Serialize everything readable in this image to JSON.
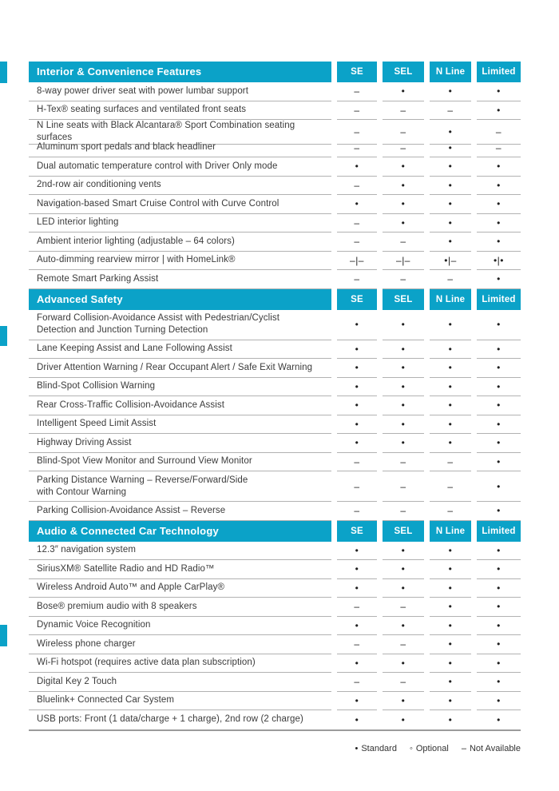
{
  "page": {
    "accent_color": "#0ba2c8",
    "divider_color": "#b2b2b2",
    "text_color": "#3b3b3b"
  },
  "columns": [
    "SE",
    "SEL",
    "N Line",
    "Limited"
  ],
  "sections": [
    {
      "title": "Interior & Convenience Features",
      "rows": [
        {
          "feature": "8-way power driver seat with power lumbar support",
          "values": [
            "–",
            "•",
            "•",
            "•"
          ]
        },
        {
          "feature": "H-Tex® seating surfaces and ventilated front seats",
          "values": [
            "–",
            "–",
            "–",
            "•"
          ]
        },
        {
          "feature": "N Line seats with Black Alcantara® Sport Combination seating surfaces",
          "values": [
            "–",
            "–",
            "•",
            "–"
          ]
        },
        {
          "feature": "Aluminum sport pedals and black headliner",
          "values": [
            "–",
            "–",
            "•",
            "–"
          ]
        },
        {
          "feature": "Dual automatic temperature control with Driver Only mode",
          "values": [
            "•",
            "•",
            "•",
            "•"
          ]
        },
        {
          "feature": "2nd-row air conditioning vents",
          "values": [
            "–",
            "•",
            "•",
            "•"
          ]
        },
        {
          "feature": "Navigation-based Smart Cruise Control with Curve Control",
          "values": [
            "•",
            "•",
            "•",
            "•"
          ]
        },
        {
          "feature": "LED interior lighting",
          "values": [
            "–",
            "•",
            "•",
            "•"
          ]
        },
        {
          "feature": "Ambient interior lighting (adjustable – 64 colors)",
          "values": [
            "–",
            "–",
            "•",
            "•"
          ]
        },
        {
          "feature": "Auto-dimming rearview mirror | with HomeLink®",
          "values": [
            "–|–",
            "–|–",
            "•|–",
            "•|•"
          ]
        },
        {
          "feature": "Remote Smart Parking Assist",
          "values": [
            "–",
            "–",
            "–",
            "•"
          ]
        }
      ]
    },
    {
      "title": "Advanced Safety",
      "rows": [
        {
          "feature": "Forward Collision-Avoidance Assist with Pedestrian/Cyclist\nDetection and Junction Turning Detection",
          "values": [
            "•",
            "•",
            "•",
            "•"
          ]
        },
        {
          "feature": "Lane Keeping Assist and Lane Following Assist",
          "values": [
            "•",
            "•",
            "•",
            "•"
          ]
        },
        {
          "feature": "Driver Attention Warning / Rear Occupant Alert / Safe Exit Warning",
          "values": [
            "•",
            "•",
            "•",
            "•"
          ]
        },
        {
          "feature": "Blind-Spot Collision Warning",
          "values": [
            "•",
            "•",
            "•",
            "•"
          ]
        },
        {
          "feature": "Rear Cross-Traffic Collision-Avoidance Assist",
          "values": [
            "•",
            "•",
            "•",
            "•"
          ]
        },
        {
          "feature": "Intelligent Speed Limit Assist",
          "values": [
            "•",
            "•",
            "•",
            "•"
          ]
        },
        {
          "feature": "Highway Driving Assist",
          "values": [
            "•",
            "•",
            "•",
            "•"
          ]
        },
        {
          "feature": "Blind-Spot View Monitor and Surround View Monitor",
          "values": [
            "–",
            "–",
            "–",
            "•"
          ]
        },
        {
          "feature": "Parking Distance Warning – Reverse/Forward/Side\nwith Contour Warning",
          "values": [
            "–",
            "–",
            "–",
            "•"
          ]
        },
        {
          "feature": "Parking Collision-Avoidance Assist – Reverse",
          "values": [
            "–",
            "–",
            "–",
            "•"
          ]
        }
      ]
    },
    {
      "title": "Audio & Connected Car Technology",
      "rows": [
        {
          "feature": "12.3″ navigation system",
          "values": [
            "•",
            "•",
            "•",
            "•"
          ]
        },
        {
          "feature": "SiriusXM® Satellite Radio and HD Radio™",
          "values": [
            "•",
            "•",
            "•",
            "•"
          ]
        },
        {
          "feature": "Wireless Android Auto™ and Apple CarPlay®",
          "values": [
            "•",
            "•",
            "•",
            "•"
          ]
        },
        {
          "feature": "Bose® premium audio with 8 speakers",
          "values": [
            "–",
            "–",
            "•",
            "•"
          ]
        },
        {
          "feature": "Dynamic Voice Recognition",
          "values": [
            "•",
            "•",
            "•",
            "•"
          ]
        },
        {
          "feature": "Wireless phone charger",
          "values": [
            "–",
            "–",
            "•",
            "•"
          ]
        },
        {
          "feature": "Wi-Fi hotspot (requires active data plan subscription)",
          "values": [
            "•",
            "•",
            "•",
            "•"
          ]
        },
        {
          "feature": "Digital Key 2 Touch",
          "values": [
            "–",
            "–",
            "•",
            "•"
          ]
        },
        {
          "feature": "Bluelink+ Connected Car System",
          "values": [
            "•",
            "•",
            "•",
            "•"
          ]
        },
        {
          "feature": "USB ports: Front (1 data/charge + 1 charge), 2nd row (2 charge)",
          "values": [
            "•",
            "•",
            "•",
            "•"
          ]
        }
      ]
    }
  ],
  "legend": {
    "items": [
      {
        "symbol": "•",
        "label": "Standard"
      },
      {
        "symbol": "◦",
        "label": "Optional"
      },
      {
        "symbol": "–",
        "label": "Not Available"
      }
    ]
  }
}
